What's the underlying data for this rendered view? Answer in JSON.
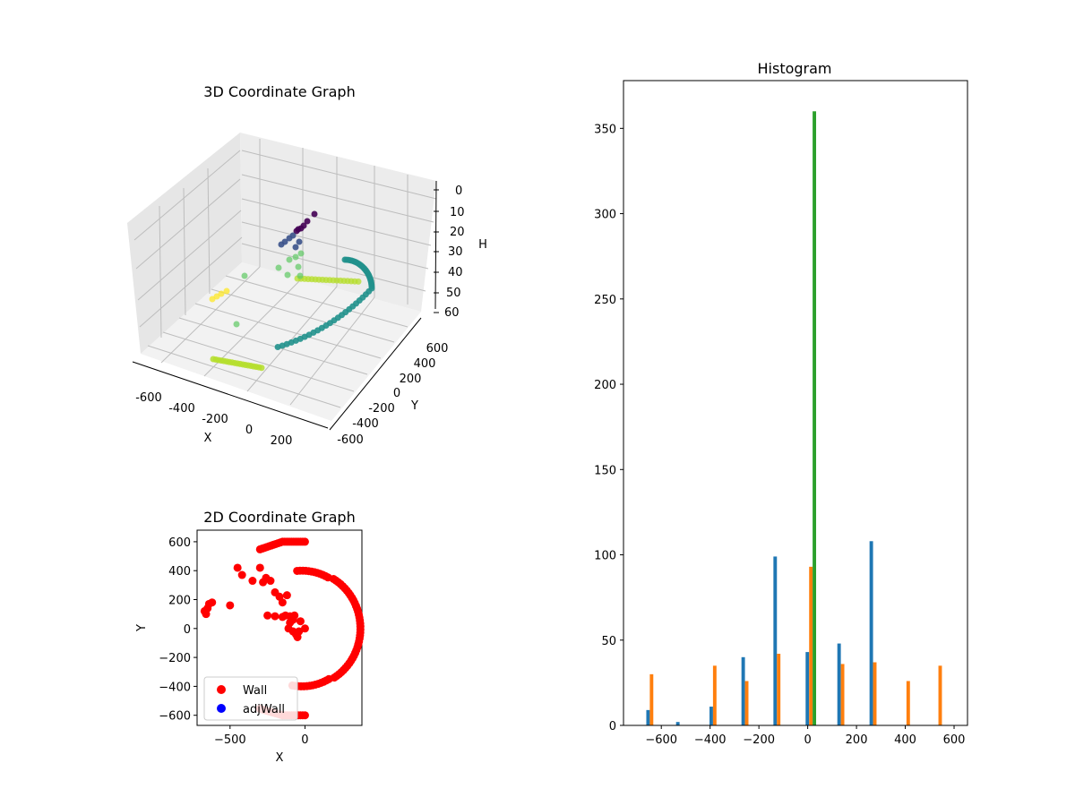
{
  "chart_data": [
    {
      "type": "scatter",
      "projection": "3d",
      "title": "3D Coordinate Graph",
      "xlabel": "X",
      "ylabel": "Y",
      "zlabel": "H",
      "x_ticks": [
        "-600",
        "-400",
        "-200",
        "0",
        "200"
      ],
      "y_ticks": [
        "600",
        "400",
        "200",
        "0",
        "-200",
        "-400",
        "-600"
      ],
      "z_ticks": [
        "0",
        "10",
        "20",
        "30",
        "40",
        "50",
        "60"
      ],
      "z_inverted": true,
      "grid": true,
      "colormap": "viridis",
      "point_colors": [
        "#440154",
        "#3b528b",
        "#5ec962",
        "#21918c",
        "#b5de2b",
        "#fde725"
      ]
    },
    {
      "type": "scatter",
      "title": "2D Coordinate Graph",
      "xlabel": "X",
      "ylabel": "Y",
      "x_ticks": [
        -500,
        0
      ],
      "y_ticks": [
        600,
        400,
        200,
        0,
        -200,
        -400,
        -600
      ],
      "xlim": [
        -720,
        380
      ],
      "ylim": [
        -670,
        680
      ],
      "legend": "lower-left",
      "series": [
        {
          "name": "Wall",
          "color": "#ff0000"
        },
        {
          "name": "adjWall",
          "color": "#0000ff"
        }
      ]
    },
    {
      "type": "bar",
      "title": "Histogram",
      "xlim": [
        -755,
        655
      ],
      "ylim": [
        0,
        378
      ],
      "x_ticks": [
        -600,
        -400,
        -200,
        0,
        200,
        400,
        600
      ],
      "y_ticks": [
        0,
        50,
        100,
        150,
        200,
        250,
        300,
        350
      ],
      "bin_centers": [
        -640,
        -518,
        -381,
        -250,
        -119,
        13,
        143,
        275,
        412,
        543
      ],
      "bar_width": 43,
      "series": [
        {
          "color": "#1f77b4",
          "values": [
            9,
            2,
            11,
            40,
            99,
            43,
            48,
            108,
            0,
            0
          ]
        },
        {
          "color": "#ff7f0e",
          "values": [
            30,
            0,
            35,
            26,
            42,
            93,
            36,
            37,
            26,
            35
          ]
        },
        {
          "color": "#2ca02c",
          "values": [
            0,
            0,
            0,
            0,
            0,
            360,
            0,
            0,
            0,
            0
          ]
        }
      ]
    }
  ]
}
